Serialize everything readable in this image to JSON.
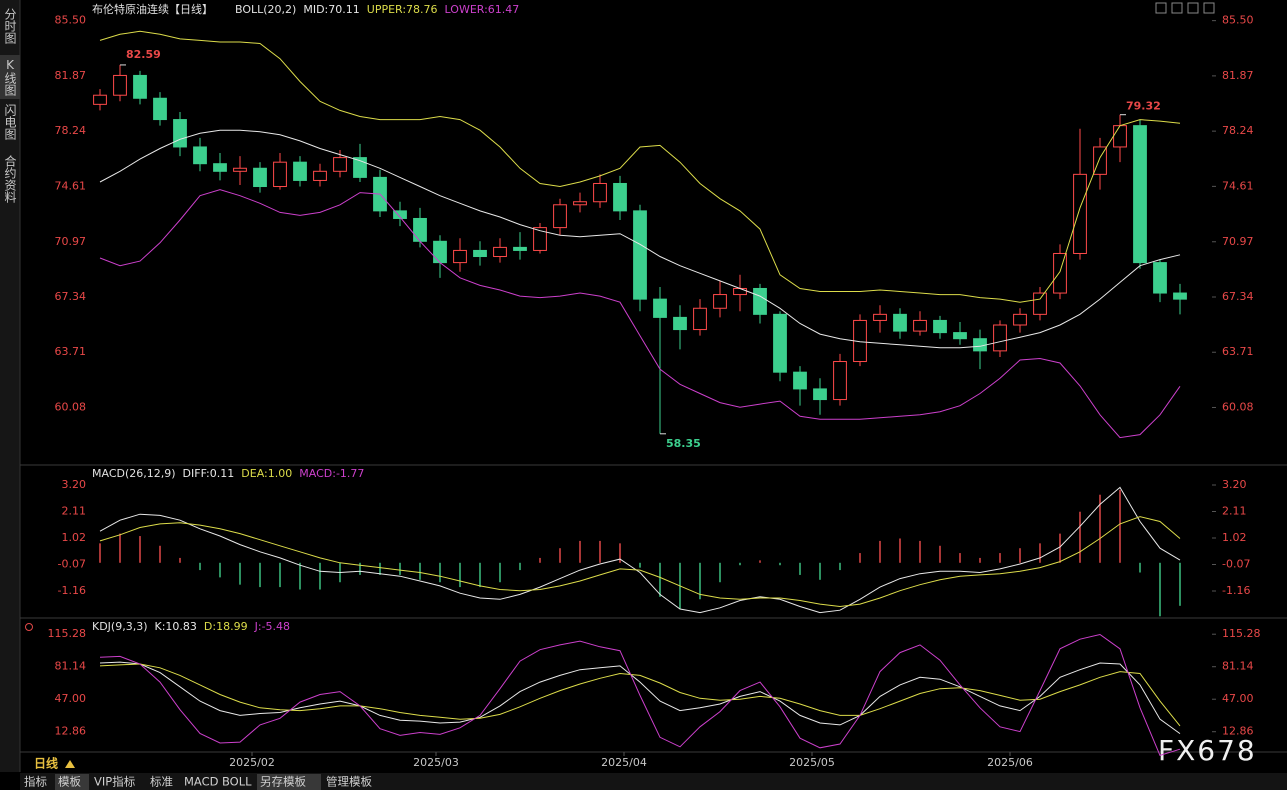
{
  "sidebar": [
    "分时图",
    "K线图",
    "闪电图",
    "合约资料"
  ],
  "period": "日线",
  "toolbar": [
    "指标",
    "模板",
    "VIP指标",
    "标准",
    "MACD",
    "BOLL",
    "另存模板",
    "管理模板"
  ],
  "watermark": "FX678",
  "chart_data": [
    {
      "type": "candlestick",
      "title": "布伦特原油连续【日线】",
      "indicator": "BOLL(20,2)",
      "up_color": "#ff4a4a",
      "down_color": "#3ccf8e",
      "ylim": [
        56.3,
        86.2
      ],
      "yticks": [
        {
          "value": 85.5,
          "label": "85.50"
        },
        81.87,
        78.24,
        74.61,
        70.97,
        67.34,
        63.71,
        60.08
      ],
      "xlim": [
        0,
        55
      ],
      "xticks": [
        {
          "value": 7.6,
          "label": "2025/02"
        },
        {
          "value": 16.8,
          "label": "2025/03"
        },
        {
          "value": 26.2,
          "label": "2025/04"
        },
        {
          "value": 35.6,
          "label": "2025/05"
        },
        {
          "value": 45.5,
          "label": "2025/06"
        }
      ],
      "ohlc": [
        [
          80.0,
          81.0,
          79.6,
          80.6
        ],
        [
          80.6,
          82.59,
          80.2,
          81.9
        ],
        [
          81.9,
          82.2,
          80.0,
          80.4
        ],
        [
          80.4,
          80.8,
          78.6,
          79.0
        ],
        [
          79.0,
          79.5,
          76.6,
          77.2
        ],
        [
          77.2,
          77.8,
          75.6,
          76.1
        ],
        [
          76.1,
          76.8,
          75.0,
          75.6
        ],
        [
          75.6,
          76.6,
          74.7,
          75.8
        ],
        [
          75.8,
          76.2,
          74.2,
          74.6
        ],
        [
          74.6,
          76.8,
          74.4,
          76.2
        ],
        [
          76.2,
          76.6,
          74.6,
          75.0
        ],
        [
          75.0,
          76.1,
          74.6,
          75.6
        ],
        [
          75.6,
          77.0,
          75.2,
          76.5
        ],
        [
          76.5,
          77.4,
          74.9,
          75.2
        ],
        [
          75.2,
          75.7,
          72.6,
          73.0
        ],
        [
          73.0,
          73.6,
          72.0,
          72.5
        ],
        [
          72.5,
          73.2,
          70.6,
          71.0
        ],
        [
          71.0,
          71.4,
          68.6,
          69.6
        ],
        [
          69.6,
          71.2,
          69.0,
          70.4
        ],
        [
          70.4,
          71.0,
          69.4,
          70.0
        ],
        [
          70.0,
          71.2,
          69.6,
          70.6
        ],
        [
          70.6,
          71.6,
          69.8,
          70.4
        ],
        [
          70.4,
          72.2,
          70.2,
          71.9
        ],
        [
          71.9,
          73.8,
          71.4,
          73.4
        ],
        [
          73.4,
          74.2,
          72.9,
          73.6
        ],
        [
          73.6,
          75.4,
          73.2,
          74.8
        ],
        [
          74.8,
          75.3,
          72.4,
          73.0
        ],
        [
          73.0,
          73.4,
          66.4,
          67.2
        ],
        [
          67.2,
          68.0,
          58.35,
          66.0
        ],
        [
          66.0,
          66.8,
          63.9,
          65.2
        ],
        [
          65.2,
          67.2,
          64.8,
          66.6
        ],
        [
          66.6,
          68.4,
          66.0,
          67.5
        ],
        [
          67.5,
          68.8,
          66.4,
          67.9
        ],
        [
          67.9,
          68.2,
          65.6,
          66.2
        ],
        [
          66.2,
          66.4,
          61.8,
          62.4
        ],
        [
          62.4,
          62.8,
          60.2,
          61.3
        ],
        [
          61.3,
          62.0,
          59.6,
          60.6
        ],
        [
          60.6,
          63.6,
          60.2,
          63.1
        ],
        [
          63.1,
          66.2,
          62.8,
          65.8
        ],
        [
          65.8,
          66.8,
          65.0,
          66.2
        ],
        [
          66.2,
          66.6,
          64.6,
          65.1
        ],
        [
          65.1,
          66.4,
          64.8,
          65.8
        ],
        [
          65.8,
          66.1,
          64.6,
          65.0
        ],
        [
          65.0,
          65.7,
          64.2,
          64.6
        ],
        [
          64.6,
          65.2,
          62.6,
          63.8
        ],
        [
          63.8,
          65.8,
          63.4,
          65.5
        ],
        [
          65.5,
          66.6,
          65.0,
          66.2
        ],
        [
          66.2,
          68.0,
          65.8,
          67.6
        ],
        [
          67.6,
          70.8,
          67.2,
          70.2
        ],
        [
          70.2,
          78.4,
          69.8,
          75.4
        ],
        [
          75.4,
          77.8,
          74.4,
          77.2
        ],
        [
          77.2,
          79.32,
          76.2,
          78.6
        ],
        [
          78.6,
          79.0,
          69.2,
          69.6
        ],
        [
          69.6,
          69.8,
          67.0,
          67.6
        ],
        [
          67.6,
          68.2,
          66.2,
          67.2
        ]
      ],
      "series": [
        {
          "name": "MID:",
          "color": "#e8e8e8",
          "values": [
            74.9,
            75.6,
            76.4,
            77.1,
            77.7,
            78.1,
            78.3,
            78.3,
            78.2,
            78.0,
            77.6,
            77.1,
            76.7,
            76.3,
            75.8,
            75.2,
            74.6,
            74.0,
            73.5,
            73.0,
            72.6,
            72.1,
            71.7,
            71.4,
            71.3,
            71.4,
            71.5,
            70.8,
            70.0,
            69.4,
            68.9,
            68.4,
            67.9,
            67.4,
            66.6,
            65.6,
            64.9,
            64.6,
            64.4,
            64.3,
            64.2,
            64.1,
            64.0,
            64.0,
            64.1,
            64.4,
            64.7,
            65.0,
            65.5,
            66.2,
            67.2,
            68.3,
            69.4,
            69.8,
            70.11
          ]
        },
        {
          "name": "UPPER:",
          "color": "#dcdc4a",
          "values": [
            84.2,
            84.6,
            84.8,
            84.6,
            84.3,
            84.2,
            84.1,
            84.1,
            84.0,
            83.0,
            81.5,
            80.2,
            79.6,
            79.2,
            79.0,
            79.0,
            79.0,
            79.2,
            79.0,
            78.3,
            77.2,
            75.8,
            74.8,
            74.6,
            74.9,
            75.3,
            75.8,
            77.2,
            77.3,
            76.2,
            74.8,
            73.8,
            73.0,
            71.8,
            68.8,
            67.9,
            67.7,
            67.7,
            67.7,
            67.8,
            67.7,
            67.6,
            67.5,
            67.5,
            67.3,
            67.2,
            67.0,
            67.2,
            69.0,
            73.2,
            76.5,
            78.6,
            79.0,
            78.9,
            78.76
          ]
        },
        {
          "name": "LOWER:",
          "color": "#cc40cc",
          "values": [
            69.9,
            69.4,
            69.7,
            70.9,
            72.4,
            74.0,
            74.4,
            74.0,
            73.5,
            72.9,
            72.7,
            72.9,
            73.4,
            74.2,
            74.1,
            72.6,
            71.0,
            69.6,
            68.6,
            68.1,
            67.8,
            67.4,
            67.3,
            67.4,
            67.6,
            67.4,
            67.0,
            64.8,
            62.6,
            61.6,
            61.0,
            60.4,
            60.1,
            60.3,
            60.5,
            59.5,
            59.3,
            59.3,
            59.3,
            59.4,
            59.5,
            59.6,
            59.8,
            60.2,
            61.0,
            62.0,
            63.2,
            63.3,
            63.0,
            61.5,
            59.6,
            58.1,
            58.3,
            59.6,
            61.47
          ]
        }
      ]
    },
    {
      "type": "macd",
      "indicator": "MACD(26,12,9)",
      "ylim": [
        -2.23,
        3.94
      ],
      "yticks": [
        {
          "value": 3.2,
          "label": "3.20"
        },
        2.11,
        1.02,
        -0.07,
        -1.16
      ],
      "series": [
        {
          "name": "DIFF:",
          "color": "#e8e8e8",
          "values": [
            1.3,
            1.75,
            2.0,
            1.95,
            1.75,
            1.4,
            1.1,
            0.75,
            0.45,
            0.2,
            -0.1,
            -0.35,
            -0.4,
            -0.35,
            -0.45,
            -0.55,
            -0.75,
            -0.95,
            -1.25,
            -1.45,
            -1.5,
            -1.3,
            -1.0,
            -0.65,
            -0.3,
            -0.05,
            0.15,
            -0.4,
            -1.3,
            -1.9,
            -2.05,
            -1.85,
            -1.55,
            -1.4,
            -1.5,
            -1.8,
            -2.05,
            -1.95,
            -1.5,
            -1.0,
            -0.65,
            -0.45,
            -0.35,
            -0.35,
            -0.4,
            -0.25,
            -0.05,
            0.2,
            0.65,
            1.5,
            2.4,
            3.1,
            1.7,
            0.6,
            0.11
          ]
        },
        {
          "name": "DEA:",
          "color": "#dcdc4a",
          "readout_label": "1.00",
          "values": [
            0.9,
            1.15,
            1.45,
            1.6,
            1.65,
            1.55,
            1.4,
            1.2,
            0.95,
            0.7,
            0.45,
            0.2,
            0.0,
            -0.1,
            -0.2,
            -0.3,
            -0.4,
            -0.55,
            -0.75,
            -0.95,
            -1.1,
            -1.15,
            -1.1,
            -0.95,
            -0.75,
            -0.5,
            -0.25,
            -0.3,
            -0.6,
            -0.95,
            -1.3,
            -1.45,
            -1.5,
            -1.45,
            -1.45,
            -1.55,
            -1.7,
            -1.8,
            -1.7,
            -1.45,
            -1.15,
            -0.9,
            -0.7,
            -0.55,
            -0.5,
            -0.45,
            -0.35,
            -0.2,
            0.05,
            0.45,
            1.0,
            1.6,
            1.9,
            1.7,
            1.0
          ]
        },
        {
          "name": "MACD:",
          "color": "#cc40cc",
          "style": "histogram",
          "up_color": "#e04848",
          "down_color": "#3cc080",
          "values": [
            0.8,
            1.2,
            1.1,
            0.7,
            0.2,
            -0.3,
            -0.6,
            -0.9,
            -1.0,
            -1.0,
            -1.1,
            -1.1,
            -0.8,
            -0.5,
            -0.5,
            -0.5,
            -0.7,
            -0.8,
            -1.0,
            -1.0,
            -0.8,
            -0.3,
            0.2,
            0.6,
            0.9,
            0.9,
            0.8,
            -0.2,
            -1.4,
            -1.9,
            -1.5,
            -0.8,
            -0.1,
            0.1,
            -0.1,
            -0.5,
            -0.7,
            -0.3,
            0.4,
            0.9,
            1.0,
            0.9,
            0.7,
            0.4,
            0.2,
            0.4,
            0.6,
            0.8,
            1.2,
            2.1,
            2.8,
            3.0,
            -0.4,
            -2.2,
            -1.77
          ]
        }
      ]
    },
    {
      "type": "kdj",
      "indicator": "KDJ(9,3,3)",
      "ylim": [
        -13.7,
        130.2
      ],
      "yticks": [
        115.28,
        81.14,
        {
          "value": 47.0,
          "label": "47.00"
        },
        12.86
      ],
      "series": [
        {
          "name": "K:",
          "color": "#e8e8e8",
          "values": [
            85,
            86,
            84,
            75,
            60,
            45,
            35,
            30,
            32,
            33,
            38,
            42,
            45,
            40,
            30,
            25,
            24,
            22,
            23,
            28,
            40,
            55,
            65,
            72,
            78,
            80,
            82,
            65,
            45,
            35,
            38,
            42,
            50,
            55,
            45,
            30,
            22,
            20,
            30,
            50,
            62,
            70,
            68,
            60,
            50,
            40,
            35,
            50,
            70,
            78,
            85,
            84,
            62,
            26,
            10.83
          ]
        },
        {
          "name": "D:",
          "color": "#dcdc4a",
          "values": [
            82,
            83,
            84,
            80,
            72,
            62,
            52,
            44,
            38,
            36,
            35,
            37,
            40,
            40,
            37,
            33,
            30,
            28,
            26,
            27,
            31,
            39,
            48,
            56,
            63,
            69,
            74,
            72,
            64,
            54,
            48,
            46,
            47,
            50,
            48,
            42,
            35,
            30,
            30,
            37,
            45,
            53,
            58,
            59,
            56,
            51,
            46,
            47,
            55,
            62,
            70,
            76,
            74,
            45,
            18.99
          ]
        },
        {
          "name": "J:",
          "color": "#cc40cc",
          "values": [
            91,
            92,
            84,
            65,
            36,
            11,
            1,
            2,
            20,
            27,
            44,
            52,
            55,
            40,
            16,
            9,
            12,
            10,
            17,
            30,
            58,
            87,
            99,
            104,
            108,
            102,
            98,
            51,
            7,
            -3,
            18,
            34,
            56,
            65,
            39,
            6,
            -4,
            0,
            30,
            76,
            96,
            104,
            88,
            62,
            38,
            18,
            13,
            56,
            100,
            110,
            115,
            100,
            38,
            -12,
            -5.48
          ]
        }
      ]
    }
  ]
}
